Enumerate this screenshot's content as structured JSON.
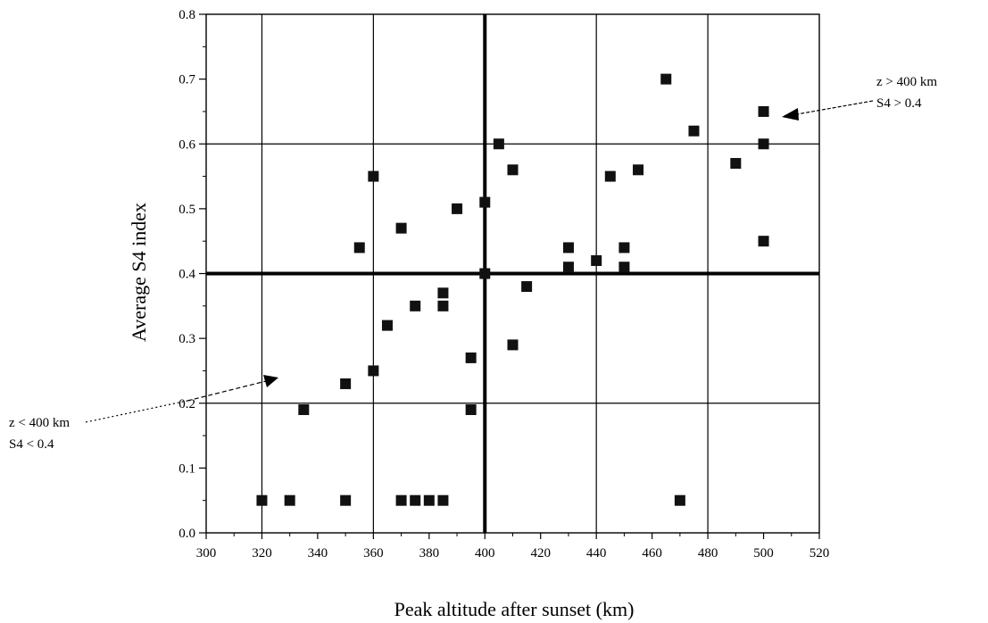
{
  "chart_data": {
    "type": "scatter",
    "xlabel": "Peak altitude after sunset (km)",
    "ylabel": "Average S4 index",
    "xlim": [
      300,
      520
    ],
    "ylim": [
      0.0,
      0.8
    ],
    "x_ticks": [
      300,
      320,
      340,
      360,
      380,
      400,
      420,
      440,
      460,
      480,
      500,
      520
    ],
    "x_tick_labels": [
      "300",
      "320",
      "340",
      "360",
      "380",
      "400",
      "420",
      "440",
      "460",
      "480",
      "500",
      "520"
    ],
    "y_ticks": [
      0.0,
      0.1,
      0.2,
      0.3,
      0.4,
      0.5,
      0.6,
      0.7,
      0.8
    ],
    "y_tick_labels": [
      "0.0",
      "0.1",
      "0.2",
      "0.3",
      "0.4",
      "0.5",
      "0.6",
      "0.7",
      "0.8"
    ],
    "grid": true,
    "reference_lines": {
      "x": 400,
      "y": 0.4
    },
    "points": [
      {
        "x": 320,
        "y": 0.05
      },
      {
        "x": 330,
        "y": 0.05
      },
      {
        "x": 335,
        "y": 0.19
      },
      {
        "x": 350,
        "y": 0.05
      },
      {
        "x": 350,
        "y": 0.23
      },
      {
        "x": 355,
        "y": 0.44
      },
      {
        "x": 360,
        "y": 0.25
      },
      {
        "x": 360,
        "y": 0.55
      },
      {
        "x": 365,
        "y": 0.32
      },
      {
        "x": 370,
        "y": 0.05
      },
      {
        "x": 370,
        "y": 0.47
      },
      {
        "x": 375,
        "y": 0.05
      },
      {
        "x": 375,
        "y": 0.35
      },
      {
        "x": 380,
        "y": 0.05
      },
      {
        "x": 385,
        "y": 0.05
      },
      {
        "x": 385,
        "y": 0.35
      },
      {
        "x": 385,
        "y": 0.37
      },
      {
        "x": 390,
        "y": 0.5
      },
      {
        "x": 395,
        "y": 0.19
      },
      {
        "x": 395,
        "y": 0.27
      },
      {
        "x": 400,
        "y": 0.4
      },
      {
        "x": 400,
        "y": 0.51
      },
      {
        "x": 405,
        "y": 0.6
      },
      {
        "x": 410,
        "y": 0.29
      },
      {
        "x": 410,
        "y": 0.56
      },
      {
        "x": 415,
        "y": 0.38
      },
      {
        "x": 430,
        "y": 0.41
      },
      {
        "x": 430,
        "y": 0.44
      },
      {
        "x": 440,
        "y": 0.42
      },
      {
        "x": 445,
        "y": 0.55
      },
      {
        "x": 450,
        "y": 0.41
      },
      {
        "x": 450,
        "y": 0.44
      },
      {
        "x": 455,
        "y": 0.56
      },
      {
        "x": 465,
        "y": 0.7
      },
      {
        "x": 470,
        "y": 0.05
      },
      {
        "x": 475,
        "y": 0.62
      },
      {
        "x": 490,
        "y": 0.57
      },
      {
        "x": 500,
        "y": 0.45
      },
      {
        "x": 500,
        "y": 0.6
      },
      {
        "x": 500,
        "y": 0.65
      }
    ],
    "annotations": [
      {
        "lines": [
          "z > 400 km",
          "S4 > 0.4"
        ]
      },
      {
        "lines": [
          "z < 400 km",
          "S4 < 0.4"
        ]
      }
    ]
  }
}
